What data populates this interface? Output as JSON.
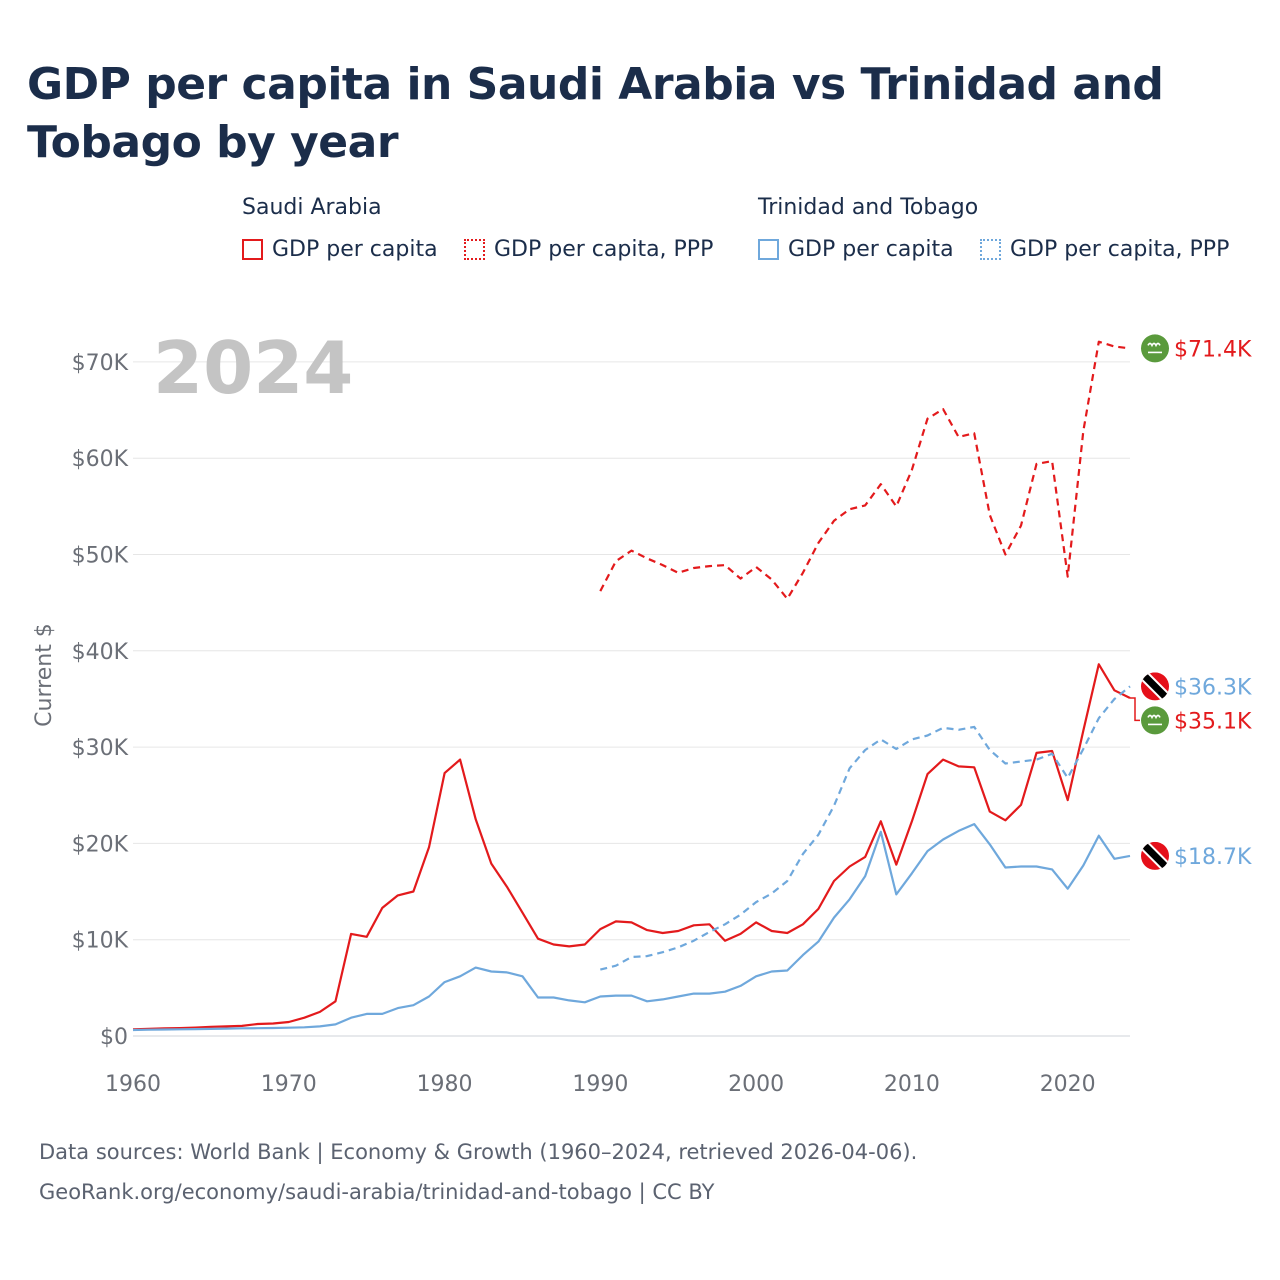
{
  "title": "GDP per capita in Saudi Arabia vs Trinidad and Tobago by year",
  "legend": {
    "groups": [
      {
        "name": "Saudi Arabia",
        "items": [
          {
            "label": "GDP per capita",
            "style": "solid",
            "color": "#e31a1c"
          },
          {
            "label": "GDP per capita, PPP",
            "style": "dotted",
            "color": "#e31a1c"
          }
        ]
      },
      {
        "name": "Trinidad and Tobago",
        "items": [
          {
            "label": "GDP per capita",
            "style": "solid",
            "color": "#6fa8dc"
          },
          {
            "label": "GDP per capita, PPP",
            "style": "dotted",
            "color": "#6fa8dc"
          }
        ]
      }
    ]
  },
  "footer": {
    "line1": "Data sources: World Bank | Economy & Growth (1960–2024, retrieved 2026-04-06).",
    "line2": "GeoRank.org/economy/saudi-arabia/trinidad-and-tobago | CC BY"
  },
  "chart_data": {
    "type": "line",
    "year_watermark": "2024",
    "ylabel": "Current $",
    "xlabel": "",
    "xlim": [
      1960,
      2024
    ],
    "ylim": [
      0,
      72000
    ],
    "x_ticks": [
      1960,
      1970,
      1980,
      1990,
      2000,
      2010,
      2020
    ],
    "y_ticks": [
      {
        "value": 0,
        "label": "$0"
      },
      {
        "value": 10000,
        "label": "$10K"
      },
      {
        "value": 20000,
        "label": "$20K"
      },
      {
        "value": 30000,
        "label": "$30K"
      },
      {
        "value": 40000,
        "label": "$40K"
      },
      {
        "value": 50000,
        "label": "$50K"
      },
      {
        "value": 60000,
        "label": "$60K"
      },
      {
        "value": 70000,
        "label": "$70K"
      }
    ],
    "grid": true,
    "series": [
      {
        "name": "Saudi Arabia GDP per capita, PPP",
        "country": "Saudi Arabia",
        "color": "#e31a1c",
        "dash": "dashed",
        "flag": "saudi",
        "end_label": "$71.4K",
        "x": [
          1990,
          1991,
          1992,
          1993,
          1994,
          1995,
          1996,
          1997,
          1998,
          1999,
          2000,
          2001,
          2002,
          2003,
          2004,
          2005,
          2006,
          2007,
          2008,
          2009,
          2010,
          2011,
          2012,
          2013,
          2014,
          2015,
          2016,
          2017,
          2018,
          2019,
          2020,
          2021,
          2022,
          2023,
          2024
        ],
        "values": [
          46200,
          49300,
          50400,
          49600,
          48900,
          48100,
          48600,
          48800,
          48900,
          47500,
          48700,
          47400,
          45400,
          48100,
          51200,
          53500,
          54700,
          55100,
          57300,
          55000,
          58800,
          64100,
          65100,
          62200,
          62600,
          54100,
          50000,
          53000,
          59400,
          59700,
          47700,
          62800,
          72100,
          71600,
          71400
        ]
      },
      {
        "name": "Saudi Arabia GDP per capita",
        "country": "Saudi Arabia",
        "color": "#e31a1c",
        "dash": "solid",
        "flag": "saudi",
        "end_label": "$35.1K",
        "x": [
          1960,
          1961,
          1962,
          1963,
          1964,
          1965,
          1966,
          1967,
          1968,
          1969,
          1970,
          1971,
          1972,
          1973,
          1974,
          1975,
          1976,
          1977,
          1978,
          1979,
          1980,
          1981,
          1982,
          1983,
          1984,
          1985,
          1986,
          1987,
          1988,
          1989,
          1990,
          1991,
          1992,
          1993,
          1994,
          1995,
          1996,
          1997,
          1998,
          1999,
          2000,
          2001,
          2002,
          2003,
          2004,
          2005,
          2006,
          2007,
          2008,
          2009,
          2010,
          2011,
          2012,
          2013,
          2014,
          2015,
          2016,
          2017,
          2018,
          2019,
          2020,
          2021,
          2022,
          2023,
          2024
        ],
        "values": [
          700,
          750,
          800,
          820,
          870,
          950,
          1000,
          1050,
          1250,
          1300,
          1450,
          1900,
          2500,
          3600,
          10600,
          10300,
          13300,
          14600,
          15000,
          19600,
          27300,
          28700,
          22500,
          17900,
          15500,
          12800,
          10100,
          9500,
          9300,
          9500,
          11100,
          11900,
          11800,
          11000,
          10700,
          10900,
          11500,
          11600,
          9900,
          10600,
          11800,
          10900,
          10700,
          11600,
          13200,
          16100,
          17600,
          18600,
          22300,
          17800,
          22300,
          27200,
          28700,
          28000,
          27900,
          23300,
          22400,
          24000,
          29400,
          29600,
          24500,
          31700,
          38600,
          35900,
          35100
        ]
      },
      {
        "name": "Trinidad and Tobago GDP per capita, PPP",
        "country": "Trinidad and Tobago",
        "color": "#6fa8dc",
        "dash": "dashed",
        "flag": "tt",
        "end_label": "$36.3K",
        "x": [
          1990,
          1991,
          1992,
          1993,
          1994,
          1995,
          1996,
          1997,
          1998,
          1999,
          2000,
          2001,
          2002,
          2003,
          2004,
          2005,
          2006,
          2007,
          2008,
          2009,
          2010,
          2011,
          2012,
          2013,
          2014,
          2015,
          2016,
          2017,
          2018,
          2019,
          2020,
          2021,
          2022,
          2023,
          2024
        ],
        "values": [
          6900,
          7300,
          8200,
          8300,
          8700,
          9200,
          9900,
          10800,
          11600,
          12600,
          13900,
          14800,
          16100,
          18900,
          20900,
          23900,
          27800,
          29700,
          30800,
          29800,
          30800,
          31200,
          32000,
          31800,
          32100,
          29700,
          28300,
          28500,
          28700,
          29300,
          26800,
          29800,
          33000,
          35000,
          36300
        ]
      },
      {
        "name": "Trinidad and Tobago GDP per capita",
        "country": "Trinidad and Tobago",
        "color": "#6fa8dc",
        "dash": "solid",
        "flag": "tt",
        "end_label": "$18.7K",
        "x": [
          1960,
          1961,
          1962,
          1963,
          1964,
          1965,
          1966,
          1967,
          1968,
          1969,
          1970,
          1971,
          1972,
          1973,
          1974,
          1975,
          1976,
          1977,
          1978,
          1979,
          1980,
          1981,
          1982,
          1983,
          1984,
          1985,
          1986,
          1987,
          1988,
          1989,
          1990,
          1991,
          1992,
          1993,
          1994,
          1995,
          1996,
          1997,
          1998,
          1999,
          2000,
          2001,
          2002,
          2003,
          2004,
          2005,
          2006,
          2007,
          2008,
          2009,
          2010,
          2011,
          2012,
          2013,
          2014,
          2015,
          2016,
          2017,
          2018,
          2019,
          2020,
          2021,
          2022,
          2023,
          2024
        ],
        "values": [
          620,
          650,
          680,
          700,
          720,
          740,
          770,
          800,
          810,
          830,
          860,
          900,
          1000,
          1200,
          1900,
          2300,
          2300,
          2900,
          3200,
          4100,
          5600,
          6200,
          7100,
          6700,
          6600,
          6200,
          4000,
          4000,
          3700,
          3500,
          4100,
          4200,
          4200,
          3600,
          3800,
          4100,
          4400,
          4400,
          4600,
          5200,
          6200,
          6700,
          6800,
          8400,
          9800,
          12300,
          14200,
          16600,
          21200,
          14700,
          16900,
          19200,
          20400,
          21300,
          22000,
          19900,
          17500,
          17600,
          17600,
          17300,
          15300,
          17700,
          20800,
          18400,
          18700
        ]
      }
    ]
  }
}
